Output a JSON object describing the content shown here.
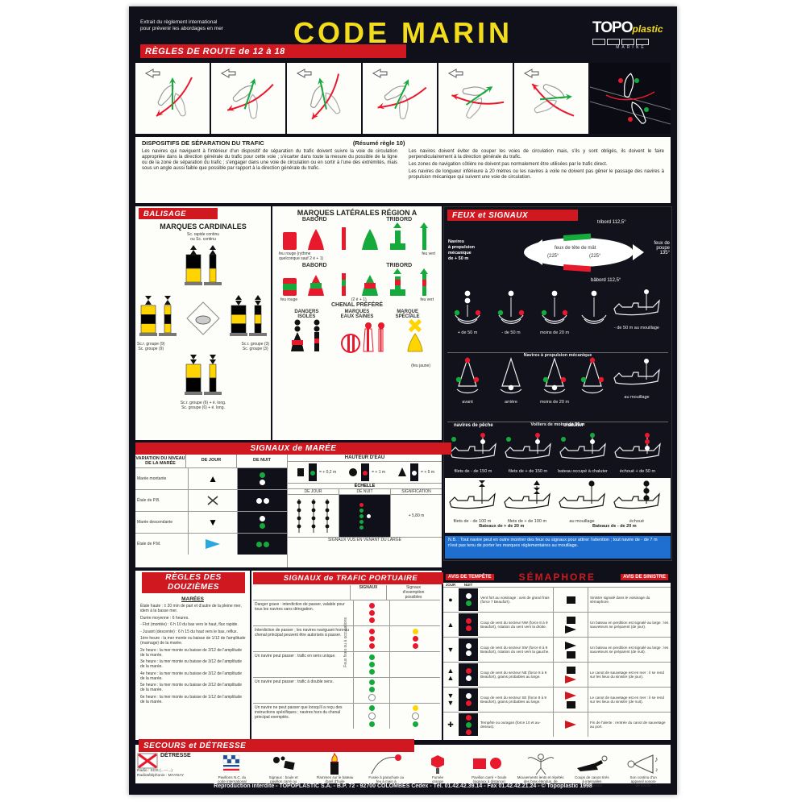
{
  "poster": {
    "tagline": [
      "Extrait du règlement international",
      "pour prévenir les abordages en mer"
    ],
    "title": "CODE MARIN",
    "logo": {
      "main": "TOPO",
      "accent": "plastic",
      "sub": "MARINE"
    },
    "footer": "Reproduction interdite - TOPOPLASTIC S.A. - B.P. 72 - 92700 COLOMBES Cedex - Tél. 01.42.42.39.14 - Fax 01.42.42.21.24 - © Topoplastic 1998"
  },
  "route": {
    "banner": "RÈGLES DE ROUTE de 12 à 18",
    "caption": "DISPOSITIFS DE SÉPARATION DU TRAFIC",
    "caption_note": "(Résumé règle 10)",
    "para_left": "Les navires qui naviguent à l'intérieur d'un dispositif de séparation du trafic doivent suivre la voie de circulation appropriée dans la direction générale du trafic pour cette voie ; s'écarter dans toute la mesure du possible de la ligne ou de la zone de séparation du trafic ; s'engager dans une voie de circulation ou en sortir à l'une des extrémités, mais sous un angle aussi faible que possible par rapport à la direction générale du trafic.",
    "para_right": [
      "Les navires doivent éviter de couper les voies de circulation mais, s'ils y sont obligés, ils doivent le faire perpendiculairement à la direction générale du trafic.",
      "Les zones de navigation côtière ne doivent pas normalement être utilisées par le trafic direct.",
      "Les navires de longueur inférieure à 20 mètres ou les navires à voile ne doivent pas gêner le passage des navires à propulsion mécanique qui suivent une voie de circulation."
    ]
  },
  "balisage": {
    "title": "BALISAGE",
    "cardinales": "MARQUES CARDINALES",
    "note": [
      "Sc. rapide continu",
      "ou Sc. continu"
    ],
    "label_west": [
      "Sc.r. groupe (9)",
      "Sc. groupe (9)"
    ],
    "label_east": [
      "Sc.r. groupe (3)",
      "Sc. groupe (3)"
    ],
    "label_south": [
      "Sc.r. groupe (6) + é. long.",
      "Sc. groupe (6) + é. long."
    ]
  },
  "laterales": {
    "title": "MARQUES LATÉRALES RÉGION A",
    "babord": "BABORD",
    "tribord": "TRIBORD",
    "note_rouge": [
      "feu rouge (rythme",
      "quelconque sauf 2 é + 1)"
    ],
    "note_vert": "feu vert",
    "note_rouge2": "feu rouge",
    "note_mid": "(2 é + 1)",
    "note_vert2": "feu vert",
    "chenal": "CHENAL PRÉFÉRÉ",
    "dangers": [
      "DANGERS",
      "ISOLÉS"
    ],
    "eaux": [
      "MARQUES",
      "EAUX SAINES"
    ],
    "speciale": [
      "MARQUE",
      "SPÉCIALE"
    ],
    "feu_jaune": "(feu jaune)"
  },
  "feux": {
    "title": "FEUX et SIGNAUX",
    "intro": [
      "Navires",
      "à propulsion",
      "mécanique",
      "de + 50 m"
    ],
    "diagram": {
      "tribord": "tribord 112,5°",
      "babord": "bâbord 112,5°",
      "tete": "feux de tête de mât",
      "angle1": "225°",
      "angle2": "225°",
      "poupe": [
        "feux de poupe",
        "135°"
      ]
    },
    "row1": {
      "labels": [
        "+ de 50 m",
        "- de 50 m",
        "moins de 20 m",
        "",
        "- de 50 m au mouillage"
      ],
      "caption": "Navires à propulsion mécanique"
    },
    "row2": {
      "labels": [
        "avant",
        "arrière",
        "moins de 20 m",
        "",
        "au mouillage"
      ],
      "caption": "Voiliers de moins de 50 m"
    },
    "row3": {
      "title": "navires de pêche",
      "extra": "chalutier",
      "labels": [
        "filets de - de 150 m",
        "filets de + de 150 m",
        "bateau occupé à chaluter",
        "échoué + de 50 m"
      ]
    },
    "row4": {
      "labels": [
        "filets de - de 100 m",
        "filets de + de 100 m",
        "au mouillage",
        "échoué"
      ],
      "captions": [
        "Bateaux de + de 20 m",
        "Bateaux de - de 20 m"
      ]
    },
    "nb": "N.B. : Tout navire peut en outre montrer des feux ou signaux pour attirer l'attention ; tout navire de - de 7 m n'est pas tenu de porter les marques réglementaires au mouillage."
  },
  "maree": {
    "title": "SIGNAUX de MARÉE",
    "var_header": "VARIATION DU NIVEAU DE LA MARÉE",
    "jour": "DE JOUR",
    "nuit": "DE NUIT",
    "rows": [
      "Marée montante",
      "Étale de P.B.",
      "Marée descendante",
      "Étale de P.M."
    ],
    "hauteur": "HAUTEUR D'EAU",
    "h_values": [
      "= + 0,2 m",
      "= + 1 m",
      "= + 5 m"
    ],
    "echelle": "ÉCHELLE",
    "ech_cols": [
      "DE JOUR",
      "DE NUIT",
      "SIGNIFICATION"
    ],
    "ech_val": "+ 5,80 m",
    "bottom": "SIGNAUX VUS EN VENANT DU LARGE"
  },
  "douziemes": {
    "title": [
      "RÈGLES DES",
      "DOUZIÈMES"
    ],
    "head": "MARÉES",
    "lines": [
      "Étale haute : ± 20 min de part et d'autre de la pleine mer, idem à la basse mer.",
      "Durée moyenne : 6 heures.",
      "- Flot (montée) : 6 h 10 du bas vers le haut, flux rapide.",
      "- Jusant (descente) : 6 h 15 du haut vers le bas, reflux.",
      "1ère heure : la mer monte ou baisse de 1/12 de l'amplitude (marnage) de la marée.",
      "2e heure : la mer monte ou baisse de 2/12 de l'amplitude de la marée.",
      "3e heure : la mer monte ou baisse de 3/12 de l'amplitude de la marée.",
      "4e heure : la mer monte ou baisse de 3/12 de l'amplitude de la marée.",
      "5e heure : la mer monte ou baisse de 2/12 de l'amplitude de la marée.",
      "6e heure : la mer monte ou baisse de 1/12 de l'amplitude de la marée."
    ]
  },
  "trafic": {
    "title": "SIGNAUX de TRAFIC PORTUAIRE",
    "col_sig": "SIGNAUX",
    "col_ex": [
      "Signaux",
      "d'exemption",
      "possibles"
    ],
    "side_note": "Feux fixes ou à occultations",
    "rows": [
      {
        "text": "Danger grave : interdiction de passer, valable pour tous les navires sans dérogation.",
        "sig": [
          "r",
          "r",
          "r"
        ],
        "ex": []
      },
      {
        "text": "Interdiction de passer ; les navires naviguant hors du chenal principal peuvent être autorisés à passer.",
        "sig": [
          "r",
          "r",
          "r"
        ],
        "ex": [
          "y",
          "r",
          "r"
        ]
      },
      {
        "text": "Un navire peut passer : trafic en sens unique.",
        "sig": [
          "g",
          "g",
          "g"
        ],
        "ex": []
      },
      {
        "text": "Un navire peut passer : trafic à double sens.",
        "sig": [
          "g",
          "g",
          "w"
        ],
        "ex": []
      },
      {
        "text": "Un navire ne peut passer que lorsqu'il a reçu des instructions spécifiques ; navires hors du chenal principal exemptés.",
        "sig": [
          "g",
          "w",
          "g"
        ],
        "ex": [
          "y",
          "w",
          "g"
        ]
      }
    ]
  },
  "semaphore": {
    "left": "AVIS DE TEMPÊTE",
    "title": "SÉMAPHORE",
    "right": "AVIS DE SINISTRE",
    "jour": "JOUR",
    "nuit": "NUIT",
    "rows": [
      {
        "shape": "ball",
        "lights": [
          "w",
          "g"
        ],
        "text": "Vent fort au voisinage : avis de grand frais (force 7 Beaufort).",
        "flags": [
          "ksq"
        ],
        "rtext": "Sinistre signalé dans le voisinage du sémaphore."
      },
      {
        "shape": "up1",
        "lights": [
          "r",
          "r"
        ],
        "text": "Coup de vent du secteur NW (force 8 à 9 Beaufort), rotation du vent vers la droite.",
        "flags": [
          "ksq",
          "kpen"
        ],
        "rtext": "Un bateau en perdition est signalé au large : les sauveteurs se préparent (de jour)."
      },
      {
        "shape": "down1",
        "lights": [
          "w",
          "w"
        ],
        "text": "Coup de vent du secteur SW (force 8 à 9 Beaufort), rotation du vent vers la gauche.",
        "flags": [
          "kpen",
          "ksq"
        ],
        "rtext": "Un bateau en perdition est signalé au large : les sauveteurs se préparent (de nuit)."
      },
      {
        "shape": "up2",
        "lights": [
          "r",
          "w"
        ],
        "text": "Coup de vent du secteur NE (force 8 à 9 Beaufort), grains probables au large.",
        "flags": [
          "ksq",
          "rpen"
        ],
        "rtext": "Le canot de sauvetage est en mer : il se rend sur les lieux du sinistre (de jour)."
      },
      {
        "shape": "down2",
        "lights": [
          "w",
          "r"
        ],
        "text": "Coup de vent du secteur SE (force 8 à 9 Beaufort), grains probables au large.",
        "flags": [
          "rpen",
          "ksq"
        ],
        "rtext": "Le canot de sauvetage est en mer : il se rend sur les lieux du sinistre (de nuit)."
      },
      {
        "shape": "cross",
        "lights": [
          "r",
          "g",
          "r"
        ],
        "text": "Tempête ou ouragan (force 10 et au-dessus).",
        "flags": [
          "rpen"
        ],
        "rtext": "Fin de l'alerte : rentrée du canot de sauvetage au port."
      }
    ]
  },
  "secours": {
    "title": "SECOURS et DÉTRESSE",
    "detresse": "DÉTRESSE",
    "radio": [
      "Radio : SOS (...---...)",
      "Radiotéléphonie : MAYDAY"
    ],
    "items": [
      {
        "icon": "flagsnc",
        "caption": [
          "Pavillons N.C. du",
          "code international"
        ]
      },
      {
        "icon": "ballsq",
        "caption": [
          "Signaux : boule et",
          "pavillon carré ou",
          "objets analogues"
        ]
      },
      {
        "icon": "fire",
        "caption": [
          "Flammes sur le bateau",
          "(baril d'huile",
          "enflammé)"
        ]
      },
      {
        "icon": "flare",
        "caption": [
          "Fusée à parachute ou",
          "feu à main à",
          "lumière rouge"
        ]
      },
      {
        "icon": "smoke",
        "caption": [
          "Fumée",
          "orange"
        ]
      },
      {
        "icon": "sqball",
        "caption": [
          "Pavillon carré + boule",
          "(signaux à distance)"
        ]
      },
      {
        "icon": "person",
        "caption": [
          "Mouvements lents et répétés",
          "des bras étendus, de",
          "haut en bas"
        ]
      },
      {
        "icon": "gun",
        "caption": [
          "Coups de canon tirés",
          "à intervalles",
          "d'une minute"
        ]
      },
      {
        "icon": "horn",
        "caption": [
          "Son continu d'un",
          "appareil sonore",
          "de brume"
        ]
      }
    ]
  }
}
